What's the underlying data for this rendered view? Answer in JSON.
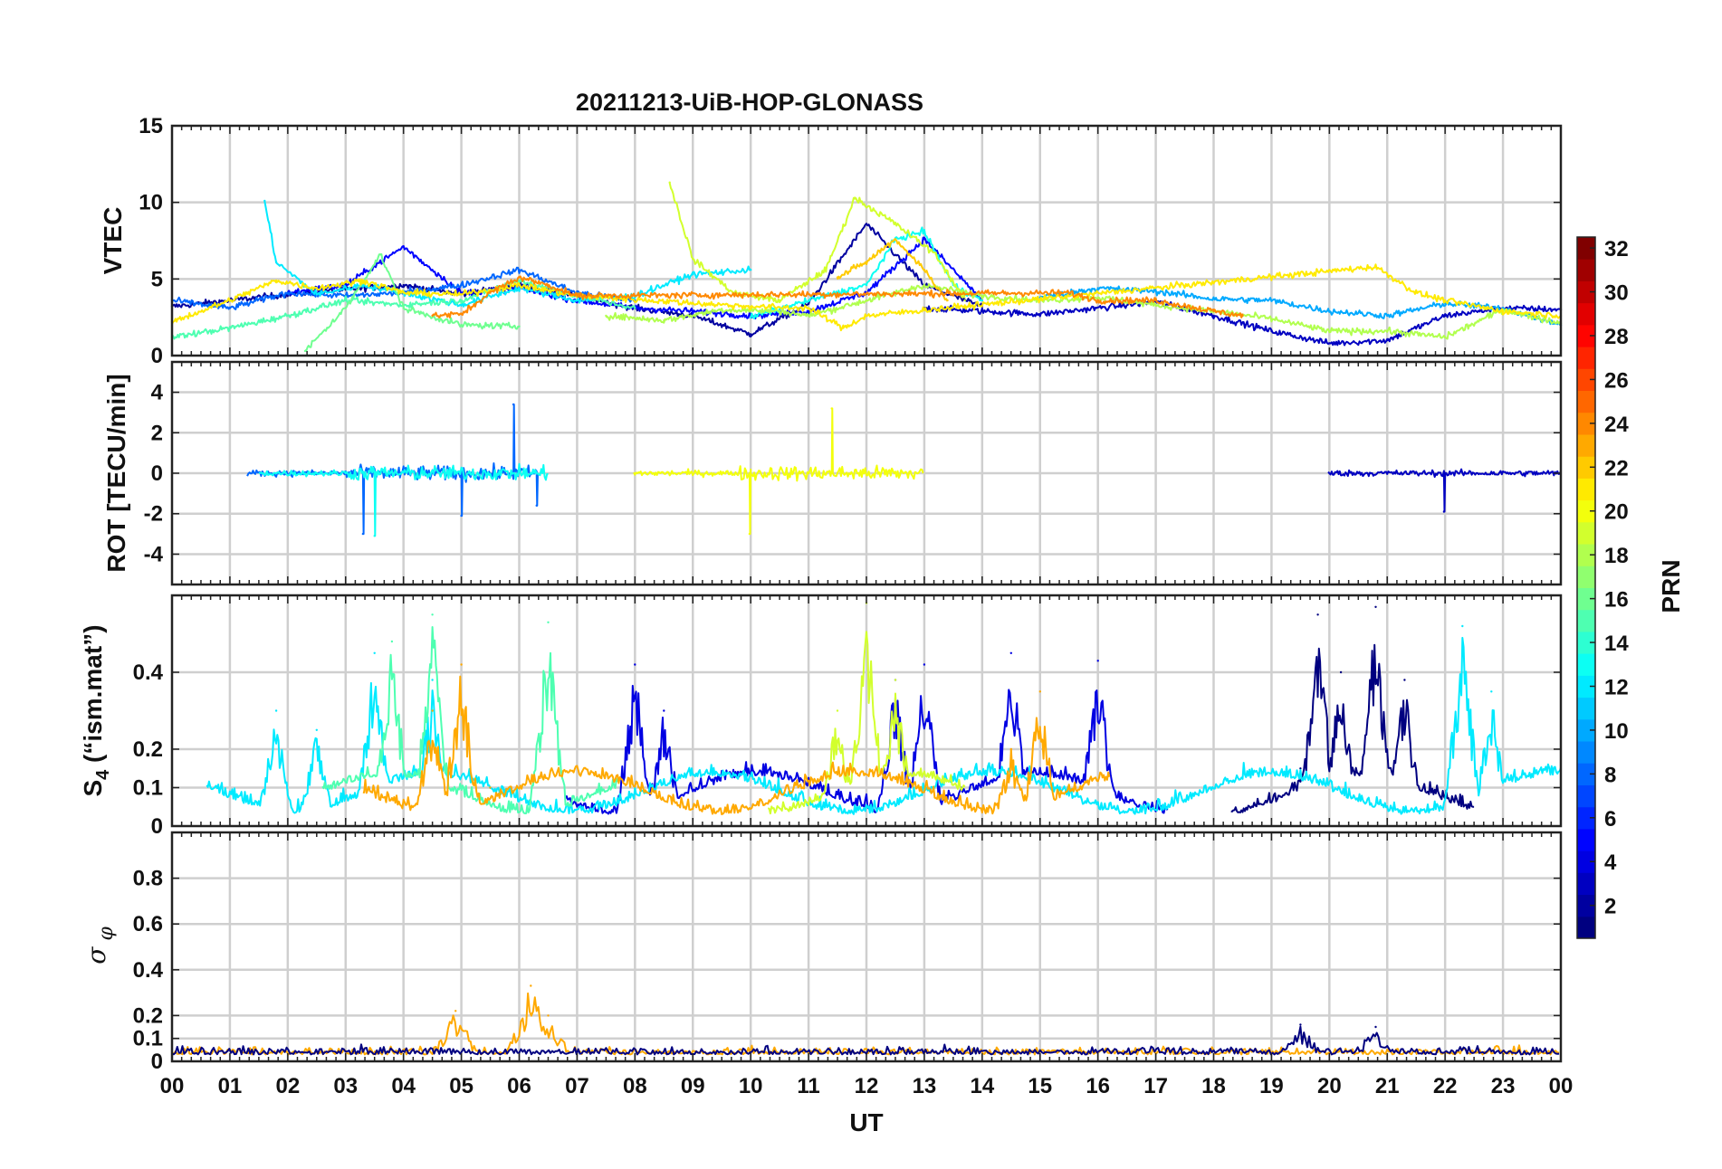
{
  "chart_data": [
    {
      "type": "line",
      "title": "20211213-UiB-HOP-GLONASS",
      "ylabel": "VTEC",
      "xlim": [
        0,
        24
      ],
      "ylim": [
        0,
        15
      ],
      "yticks": [
        0,
        5,
        10,
        15
      ],
      "grid": true,
      "series": [
        {
          "prn": 2,
          "x": [
            0,
            1,
            2,
            3,
            4,
            5,
            6,
            7,
            8,
            9,
            10,
            11,
            12,
            13,
            14
          ],
          "values": [
            3.2,
            3.6,
            4.0,
            4.3,
            4.6,
            4.0,
            4.6,
            3.9,
            3.1,
            2.6,
            1.4,
            3.4,
            8.6,
            4.6,
            3.2
          ]
        },
        {
          "prn": 3,
          "x": [
            13,
            15,
            17,
            18,
            19,
            20,
            21,
            22,
            23,
            24
          ],
          "values": [
            3.1,
            2.7,
            3.5,
            2.6,
            1.6,
            0.8,
            1.0,
            2.6,
            3.1,
            3.0
          ]
        },
        {
          "prn": 5,
          "x": [
            2,
            3,
            4,
            5,
            6,
            7,
            8,
            9,
            10,
            11,
            12,
            13,
            14
          ],
          "values": [
            4.1,
            4.6,
            7.1,
            4.1,
            4.4,
            3.6,
            3.1,
            2.9,
            2.6,
            2.9,
            4.1,
            7.6,
            3.6
          ]
        },
        {
          "prn": 8,
          "x": [
            0,
            1,
            2,
            3,
            4,
            5,
            6,
            7,
            8
          ],
          "values": [
            3.6,
            3.1,
            4.1,
            3.9,
            4.1,
            4.6,
            5.6,
            4.1,
            3.6
          ]
        },
        {
          "prn": 10,
          "x": [
            15,
            16,
            17,
            18,
            19,
            20,
            21,
            22,
            23,
            24
          ],
          "values": [
            3.8,
            4.4,
            4.2,
            3.7,
            3.6,
            2.9,
            2.6,
            3.4,
            3.1,
            2.0
          ]
        },
        {
          "prn": 12,
          "x": [
            1.6,
            1.8,
            2.5,
            3.3,
            4.0,
            5.0,
            6.0,
            7.0,
            8.0,
            9.0,
            10.0
          ],
          "values": [
            10.1,
            6.1,
            4.0,
            4.6,
            4.1,
            3.3,
            4.4,
            3.6,
            3.9,
            5.3,
            5.6
          ]
        },
        {
          "prn": 13,
          "x": [
            10.0,
            11.0,
            12.0,
            12.5,
            13.0,
            13.5,
            14.0
          ],
          "values": [
            2.5,
            3.6,
            4.6,
            7.6,
            8.1,
            4.6,
            3.6
          ]
        },
        {
          "prn": 15,
          "x": [
            0,
            1,
            2,
            3,
            4,
            5,
            6,
            7,
            8
          ],
          "values": [
            1.2,
            1.8,
            2.6,
            3.6,
            3.3,
            3.6,
            4.9,
            3.9,
            3.1
          ]
        },
        {
          "prn": 16,
          "x": [
            2.3,
            3.0,
            3.6,
            4.0,
            5.0,
            6.0
          ],
          "values": [
            0.3,
            3.1,
            6.6,
            3.1,
            2.0,
            1.9
          ]
        },
        {
          "prn": 18,
          "x": [
            7.5,
            8.5,
            9.5,
            10.5,
            11.0,
            12.0,
            13.0,
            14.0,
            15.0,
            16.0,
            17.0,
            18.0,
            19.0,
            20.0,
            21.0,
            22.0,
            23.0,
            24.0
          ],
          "values": [
            2.6,
            2.3,
            3.0,
            2.9,
            2.6,
            3.6,
            4.6,
            3.9,
            3.6,
            3.8,
            3.3,
            2.9,
            2.4,
            1.6,
            1.6,
            1.2,
            3.0,
            2.1
          ]
        },
        {
          "prn": 19,
          "x": [
            8.6,
            9.0,
            9.7,
            10.5,
            11.3,
            11.8,
            12.5,
            13.2,
            13.7
          ],
          "values": [
            11.3,
            6.3,
            4.1,
            3.6,
            5.6,
            10.3,
            8.6,
            6.6,
            3.6
          ]
        },
        {
          "prn": 21,
          "x": [
            0,
            1,
            1.8,
            2.5,
            3.3,
            4.0,
            5.0,
            6.0,
            7.0,
            10.0,
            11.0,
            11.6,
            12.0,
            20.8,
            21.5,
            22.0,
            23.0,
            24.0
          ],
          "values": [
            2.2,
            3.6,
            4.9,
            4.4,
            4.9,
            4.1,
            4.0,
            4.6,
            3.9,
            3.2,
            3.1,
            1.8,
            2.6,
            5.8,
            4.1,
            3.6,
            2.9,
            2.6
          ]
        },
        {
          "prn": 22,
          "x": [
            11.5,
            12.0,
            12.5,
            13.0,
            13.4
          ],
          "values": [
            5.1,
            6.1,
            7.6,
            5.6,
            3.6
          ]
        },
        {
          "prn": 24,
          "x": [
            4.5,
            5.0,
            5.5,
            6.0,
            6.5,
            7.0,
            15.5,
            16.0,
            17.0,
            18.0,
            18.5
          ],
          "values": [
            2.6,
            2.7,
            4.1,
            5.1,
            4.6,
            3.9,
            4.1,
            3.6,
            3.6,
            2.9,
            2.6
          ]
        }
      ]
    },
    {
      "type": "line",
      "ylabel": "ROT [TECU/min]",
      "xlim": [
        0,
        24
      ],
      "ylim": [
        -5.5,
        5.5
      ],
      "yticks": [
        -4,
        -2,
        0,
        2,
        4
      ],
      "grid": true,
      "series": [
        {
          "prn": 8,
          "x": [
            3.3,
            5.0,
            5.9,
            6.3
          ],
          "values": [
            -3.0,
            -2.1,
            3.4,
            -1.6
          ]
        },
        {
          "prn": 20,
          "x": [
            9.98,
            11.4
          ],
          "values": [
            -3.0,
            3.2
          ]
        },
        {
          "prn": 3,
          "x": [
            21.98
          ],
          "values": [
            -1.9
          ]
        },
        {
          "prn": 13,
          "x": [
            3.5
          ],
          "values": [
            -3.1
          ]
        }
      ]
    },
    {
      "type": "line",
      "ylabel": "S4 (\"ism.mat\")",
      "xlim": [
        0,
        24
      ],
      "ylim": [
        0,
        0.6
      ],
      "yticks": [
        0,
        0.1,
        0.2,
        0.4
      ],
      "ytick_labels": [
        "0",
        "0.1",
        "0.2",
        "0.4"
      ],
      "grid": true,
      "series": [
        {
          "prn": 1,
          "x": [
            19.5,
            19.8,
            20.2,
            20.8,
            21.3
          ],
          "values": [
            0.15,
            0.55,
            0.4,
            0.57,
            0.38
          ]
        },
        {
          "prn": 4,
          "x": [
            8.0,
            8.5,
            12.5,
            13.0,
            14.5,
            16.0
          ],
          "values": [
            0.42,
            0.3,
            0.38,
            0.42,
            0.45,
            0.43
          ]
        },
        {
          "prn": 12,
          "x": [
            1.8,
            2.5,
            3.5,
            4.5,
            22.3,
            22.8
          ],
          "values": [
            0.3,
            0.25,
            0.45,
            0.38,
            0.52,
            0.35
          ]
        },
        {
          "prn": 15,
          "x": [
            3.8,
            4.5,
            6.5
          ],
          "values": [
            0.48,
            0.55,
            0.53
          ]
        },
        {
          "prn": 19,
          "x": [
            11.5,
            12.0,
            12.5
          ],
          "values": [
            0.3,
            0.58,
            0.38
          ]
        },
        {
          "prn": 23,
          "x": [
            4.5,
            5.0,
            5.5,
            14.5,
            15.0
          ],
          "values": [
            0.3,
            0.42,
            0.1,
            0.2,
            0.35
          ]
        }
      ]
    },
    {
      "type": "line",
      "ylabel": "σ_φ",
      "xlabel": "UT",
      "xlim": [
        0,
        24
      ],
      "ylim": [
        0,
        1
      ],
      "yticks": [
        0,
        0.1,
        0.2,
        0.4,
        0.6,
        0.8
      ],
      "ytick_labels": [
        "0",
        "0.1",
        "0.2",
        "0.4",
        "0.6",
        "0.8"
      ],
      "grid": true,
      "series": [
        {
          "prn": 23,
          "x": [
            4.9,
            6.2,
            6.5
          ],
          "values": [
            0.22,
            0.33,
            0.2
          ]
        },
        {
          "prn": 1,
          "x": [
            19.5,
            20.8
          ],
          "values": [
            0.16,
            0.15
          ]
        }
      ]
    }
  ],
  "xtick_labels": [
    "00",
    "01",
    "02",
    "03",
    "04",
    "05",
    "06",
    "07",
    "08",
    "09",
    "10",
    "11",
    "12",
    "13",
    "14",
    "15",
    "16",
    "17",
    "18",
    "19",
    "20",
    "21",
    "22",
    "23",
    "00"
  ],
  "colorbar": {
    "label": "PRN",
    "colormap": "jet",
    "range": [
      1,
      32
    ],
    "ticks": [
      2,
      4,
      6,
      8,
      10,
      12,
      14,
      16,
      18,
      20,
      22,
      24,
      26,
      28,
      30,
      32
    ]
  }
}
